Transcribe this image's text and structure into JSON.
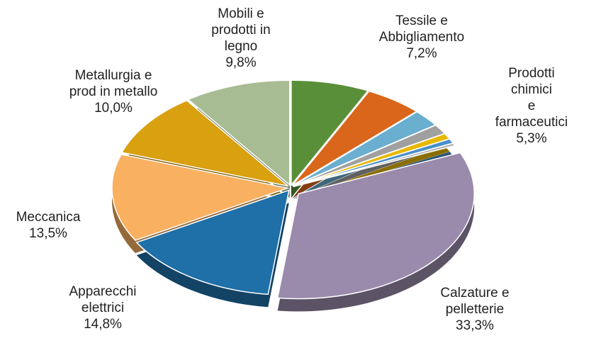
{
  "chart_data": {
    "type": "pie",
    "categories": [
      "Tessile e\nAbbigliamento",
      "Prodotti chimici\ne farmaceutici",
      null,
      null,
      null,
      null,
      null,
      "Calzature e\npelletterie",
      "Apparecchi\nelettrici",
      "Meccanica",
      "Metallurgia e\nprod in metallo",
      "Mobili e\nprodotti in\nlegno"
    ],
    "values": [
      7.2,
      5.3,
      2.6,
      1.5,
      0.9,
      0.7,
      0.4,
      33.3,
      14.8,
      13.5,
      10.0,
      9.8
    ],
    "value_labels": [
      "7,2%",
      "5,3%",
      null,
      null,
      null,
      null,
      null,
      "33,3%",
      "14,8%",
      "13,5%",
      "10,0%",
      "9,8%"
    ],
    "colors": [
      "#5a8f3a",
      "#d9661a",
      "#6aaed0",
      "#a0a0a0",
      "#e8b800",
      "#4a90c8",
      "#b0b0b0",
      "#9a8aab",
      "#1f6fa8",
      "#f9b060",
      "#d9a010",
      "#a8bc94"
    ]
  }
}
